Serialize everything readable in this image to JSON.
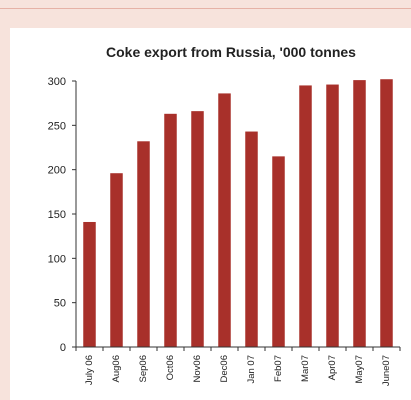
{
  "chart_data": {
    "type": "bar",
    "title": "Coke export from Russia, '000 tonnes",
    "xlabel": "",
    "ylabel": "",
    "categories": [
      "July 06",
      "Aug06",
      "Sep06",
      "Oct06",
      "Nov06",
      "Dec06",
      "Jan 07",
      "Feb07",
      "Mar07",
      "Apr07",
      "May07",
      "June07"
    ],
    "values": [
      141,
      196,
      232,
      263,
      266,
      286,
      243,
      215,
      295,
      296,
      301,
      302
    ],
    "ylim": [
      0,
      300
    ],
    "yticks": [
      "0",
      "50",
      "100",
      "150",
      "200",
      "250",
      "300"
    ],
    "grid": false,
    "bar_color": "#a8302a"
  }
}
